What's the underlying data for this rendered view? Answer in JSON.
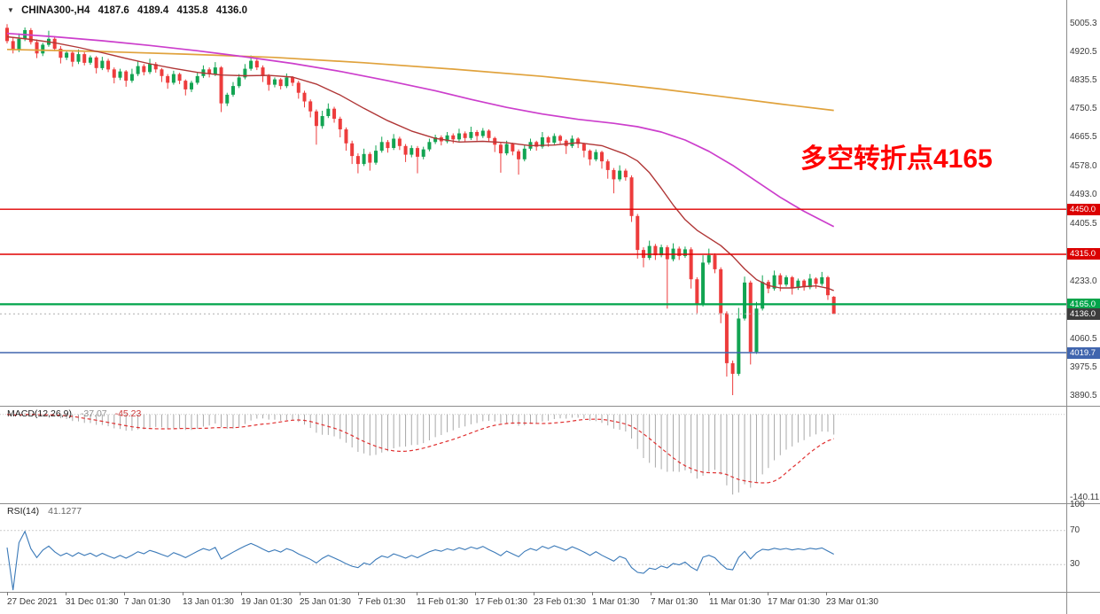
{
  "window": {
    "symbol": "CHINA300-,H4",
    "open": "4187.6",
    "high": "4189.4",
    "low": "4135.8",
    "close": "4136.0"
  },
  "annotation": {
    "text": "多空转折点4165",
    "color": "#FF0000"
  },
  "indicators": {
    "macd": {
      "name": "MACD(12,26,9)",
      "value_main": "-37.07",
      "value_signal": "-45.23",
      "axis_min": "-140.11"
    },
    "rsi": {
      "name": "RSI(14)",
      "value": "41.1277",
      "levels": [
        100,
        70,
        30
      ]
    }
  },
  "price_axis": {
    "ticks": [
      5005.3,
      4920.5,
      4835.5,
      4750.5,
      4665.5,
      4578.0,
      4493.0,
      4405.5,
      4320.5,
      4233.0,
      4148.0,
      4060.5,
      3975.5,
      3890.5
    ],
    "badges": [
      {
        "text": "4450.0",
        "price": 4450.0,
        "bg": "#DB0000"
      },
      {
        "text": "4315.0",
        "price": 4315.0,
        "bg": "#DB0000"
      },
      {
        "text": "4165.0",
        "price": 4165.0,
        "bg": "#00A44A"
      },
      {
        "text": "4136.0",
        "price": 4136.0,
        "bg": "#3C3C3C"
      },
      {
        "text": "4019.7",
        "price": 4019.7,
        "bg": "#4065AE"
      }
    ]
  },
  "time_axis": {
    "labels": [
      "27 Dec 2021",
      "31 Dec 01:30",
      "7 Jan 01:30",
      "13 Jan 01:30",
      "19 Jan 01:30",
      "25 Jan 01:30",
      "7 Feb 01:30",
      "11 Feb 01:30",
      "17 Feb 01:30",
      "23 Feb 01:30",
      "1 Mar 01:30",
      "7 Mar 01:30",
      "11 Mar 01:30",
      "17 Mar 01:30",
      "23 Mar 01:30"
    ]
  },
  "chart_data": {
    "type": "candlestick",
    "symbol": "CHINA300-",
    "timeframe": "H4",
    "visible_price_range": [
      3860,
      5078
    ],
    "colors": {
      "bull": "#12A452",
      "bear": "#ED3C3C",
      "ma_slow": "#E0A23C",
      "ma_mid": "#CC3ECC",
      "ma_fast": "#B03636",
      "macd_hist": "#A8A8A8",
      "macd_signal": "#E03131",
      "rsi": "#3A79B8"
    },
    "hlines": [
      {
        "price": 4450.0,
        "color": "#E00000",
        "width": 1.4
      },
      {
        "price": 4315.0,
        "color": "#E00000",
        "width": 1.4
      },
      {
        "price": 4165.0,
        "color": "#00A44A",
        "width": 2.2
      },
      {
        "price": 4019.7,
        "color": "#4065AE",
        "width": 1.6
      },
      {
        "price": 4136.0,
        "color": "#AFAFAF",
        "width": 1,
        "style": "dotted"
      }
    ],
    "macd": {
      "fast": 12,
      "slow": 26,
      "signal": 9
    },
    "rsi_period": 14,
    "candles": [
      [
        4995,
        5006,
        4948,
        4955
      ],
      [
        4955,
        4968,
        4918,
        4928
      ],
      [
        4928,
        4978,
        4922,
        4962
      ],
      [
        4962,
        4996,
        4955,
        4988
      ],
      [
        4988,
        4994,
        4945,
        4952
      ],
      [
        4952,
        4960,
        4904,
        4918
      ],
      [
        4918,
        4950,
        4910,
        4944
      ],
      [
        4944,
        4986,
        4938,
        4962
      ],
      [
        4962,
        4970,
        4925,
        4932
      ],
      [
        4932,
        4940,
        4888,
        4905
      ],
      [
        4905,
        4928,
        4898,
        4920
      ],
      [
        4920,
        4926,
        4878,
        4893
      ],
      [
        4893,
        4930,
        4886,
        4916
      ],
      [
        4916,
        4922,
        4882,
        4890
      ],
      [
        4890,
        4912,
        4884,
        4906
      ],
      [
        4906,
        4910,
        4858,
        4874
      ],
      [
        4874,
        4908,
        4868,
        4896
      ],
      [
        4896,
        4902,
        4862,
        4870
      ],
      [
        4870,
        4876,
        4828,
        4845
      ],
      [
        4845,
        4872,
        4838,
        4864
      ],
      [
        4864,
        4868,
        4818,
        4836
      ],
      [
        4836,
        4872,
        4830,
        4856
      ],
      [
        4856,
        4896,
        4850,
        4880
      ],
      [
        4880,
        4886,
        4852,
        4862
      ],
      [
        4862,
        4902,
        4856,
        4886
      ],
      [
        4886,
        4892,
        4860,
        4870
      ],
      [
        4870,
        4874,
        4832,
        4850
      ],
      [
        4850,
        4856,
        4812,
        4830
      ],
      [
        4830,
        4866,
        4824,
        4856
      ],
      [
        4856,
        4860,
        4826,
        4836
      ],
      [
        4836,
        4840,
        4792,
        4810
      ],
      [
        4810,
        4836,
        4802,
        4830
      ],
      [
        4830,
        4862,
        4824,
        4850
      ],
      [
        4850,
        4882,
        4844,
        4870
      ],
      [
        4870,
        4876,
        4846,
        4856
      ],
      [
        4856,
        4892,
        4850,
        4876
      ],
      [
        4876,
        4880,
        4742,
        4768
      ],
      [
        4768,
        4800,
        4760,
        4794
      ],
      [
        4794,
        4832,
        4788,
        4820
      ],
      [
        4820,
        4856,
        4814,
        4846
      ],
      [
        4846,
        4886,
        4840,
        4872
      ],
      [
        4872,
        4912,
        4866,
        4896
      ],
      [
        4896,
        4902,
        4868,
        4876
      ],
      [
        4876,
        4882,
        4832,
        4850
      ],
      [
        4850,
        4856,
        4806,
        4824
      ],
      [
        4824,
        4846,
        4816,
        4840
      ],
      [
        4840,
        4844,
        4810,
        4820
      ],
      [
        4820,
        4858,
        4814,
        4846
      ],
      [
        4846,
        4850,
        4820,
        4830
      ],
      [
        4830,
        4836,
        4782,
        4800
      ],
      [
        4800,
        4806,
        4756,
        4774
      ],
      [
        4774,
        4780,
        4726,
        4744
      ],
      [
        4744,
        4750,
        4644,
        4700
      ],
      [
        4700,
        4746,
        4692,
        4730
      ],
      [
        4730,
        4768,
        4724,
        4752
      ],
      [
        4752,
        4758,
        4710,
        4722
      ],
      [
        4722,
        4728,
        4666,
        4690
      ],
      [
        4690,
        4696,
        4626,
        4648
      ],
      [
        4648,
        4656,
        4586,
        4610
      ],
      [
        4610,
        4618,
        4558,
        4586
      ],
      [
        4586,
        4632,
        4580,
        4616
      ],
      [
        4616,
        4622,
        4566,
        4590
      ],
      [
        4590,
        4642,
        4584,
        4626
      ],
      [
        4626,
        4668,
        4620,
        4652
      ],
      [
        4652,
        4658,
        4620,
        4634
      ],
      [
        4634,
        4676,
        4628,
        4662
      ],
      [
        4662,
        4668,
        4628,
        4640
      ],
      [
        4640,
        4646,
        4592,
        4614
      ],
      [
        4614,
        4642,
        4606,
        4634
      ],
      [
        4634,
        4640,
        4558,
        4608
      ],
      [
        4608,
        4638,
        4600,
        4630
      ],
      [
        4630,
        4662,
        4624,
        4652
      ],
      [
        4652,
        4674,
        4646,
        4666
      ],
      [
        4666,
        4672,
        4642,
        4654
      ],
      [
        4654,
        4682,
        4648,
        4672
      ],
      [
        4672,
        4678,
        4648,
        4660
      ],
      [
        4660,
        4692,
        4654,
        4678
      ],
      [
        4678,
        4684,
        4652,
        4664
      ],
      [
        4664,
        4698,
        4658,
        4682
      ],
      [
        4682,
        4688,
        4656,
        4670
      ],
      [
        4670,
        4694,
        4664,
        4686
      ],
      [
        4686,
        4690,
        4652,
        4664
      ],
      [
        4664,
        4668,
        4622,
        4644
      ],
      [
        4644,
        4650,
        4560,
        4618
      ],
      [
        4618,
        4656,
        4612,
        4646
      ],
      [
        4646,
        4650,
        4612,
        4624
      ],
      [
        4624,
        4630,
        4554,
        4600
      ],
      [
        4600,
        4642,
        4594,
        4632
      ],
      [
        4632,
        4662,
        4626,
        4652
      ],
      [
        4652,
        4656,
        4626,
        4638
      ],
      [
        4638,
        4682,
        4632,
        4666
      ],
      [
        4666,
        4670,
        4638,
        4650
      ],
      [
        4650,
        4678,
        4644,
        4670
      ],
      [
        4670,
        4674,
        4644,
        4656
      ],
      [
        4656,
        4660,
        4616,
        4640
      ],
      [
        4640,
        4672,
        4634,
        4662
      ],
      [
        4662,
        4666,
        4634,
        4646
      ],
      [
        4646,
        4650,
        4606,
        4626
      ],
      [
        4626,
        4630,
        4582,
        4600
      ],
      [
        4600,
        4630,
        4594,
        4622
      ],
      [
        4622,
        4626,
        4572,
        4594
      ],
      [
        4594,
        4600,
        4542,
        4568
      ],
      [
        4568,
        4574,
        4498,
        4540
      ],
      [
        4540,
        4582,
        4534,
        4566
      ],
      [
        4566,
        4572,
        4536,
        4546
      ],
      [
        4546,
        4552,
        4412,
        4430
      ],
      [
        4430,
        4436,
        4302,
        4328
      ],
      [
        4328,
        4336,
        4276,
        4304
      ],
      [
        4304,
        4356,
        4298,
        4340
      ],
      [
        4340,
        4346,
        4298,
        4312
      ],
      [
        4312,
        4344,
        4306,
        4336
      ],
      [
        4336,
        4342,
        4152,
        4300
      ],
      [
        4300,
        4348,
        4294,
        4332
      ],
      [
        4332,
        4338,
        4298,
        4310
      ],
      [
        4310,
        4338,
        4304,
        4330
      ],
      [
        4330,
        4336,
        4212,
        4240
      ],
      [
        4240,
        4246,
        4138,
        4164
      ],
      [
        4164,
        4312,
        4158,
        4290
      ],
      [
        4290,
        4332,
        4284,
        4312
      ],
      [
        4312,
        4318,
        4258,
        4270
      ],
      [
        4270,
        4276,
        4108,
        4138
      ],
      [
        4138,
        4144,
        3948,
        3988
      ],
      [
        3988,
        3996,
        3892,
        3956
      ],
      [
        3956,
        4154,
        3950,
        4122
      ],
      [
        4122,
        4248,
        4116,
        4230
      ],
      [
        4230,
        4236,
        3984,
        4022
      ],
      [
        4022,
        4172,
        4016,
        4152
      ],
      [
        4152,
        4252,
        4146,
        4232
      ],
      [
        4232,
        4238,
        4198,
        4212
      ],
      [
        4212,
        4266,
        4206,
        4252
      ],
      [
        4252,
        4258,
        4204,
        4224
      ],
      [
        4224,
        4252,
        4218,
        4246
      ],
      [
        4246,
        4250,
        4194,
        4214
      ],
      [
        4214,
        4242,
        4208,
        4236
      ],
      [
        4236,
        4240,
        4206,
        4216
      ],
      [
        4216,
        4256,
        4210,
        4242
      ],
      [
        4242,
        4246,
        4212,
        4226
      ],
      [
        4226,
        4262,
        4220,
        4246
      ],
      [
        4246,
        4250,
        4178,
        4192
      ],
      [
        4187.6,
        4189.4,
        4135.8,
        4136.0
      ]
    ],
    "ma_slow_orange": [
      [
        0,
        4930
      ],
      [
        15,
        4924
      ],
      [
        30,
        4916
      ],
      [
        45,
        4906
      ],
      [
        60,
        4890
      ],
      [
        75,
        4871
      ],
      [
        90,
        4849
      ],
      [
        100,
        4831
      ],
      [
        110,
        4811
      ],
      [
        120,
        4789
      ],
      [
        130,
        4766
      ],
      [
        139,
        4747
      ]
    ],
    "ma_mid_magenta": [
      [
        0,
        4978
      ],
      [
        8,
        4968
      ],
      [
        16,
        4956
      ],
      [
        24,
        4942
      ],
      [
        32,
        4926
      ],
      [
        40,
        4908
      ],
      [
        48,
        4888
      ],
      [
        56,
        4864
      ],
      [
        64,
        4836
      ],
      [
        72,
        4806
      ],
      [
        78,
        4780
      ],
      [
        84,
        4756
      ],
      [
        90,
        4736
      ],
      [
        96,
        4720
      ],
      [
        102,
        4708
      ],
      [
        106,
        4698
      ],
      [
        110,
        4682
      ],
      [
        114,
        4658
      ],
      [
        118,
        4624
      ],
      [
        122,
        4582
      ],
      [
        126,
        4534
      ],
      [
        130,
        4486
      ],
      [
        134,
        4444
      ],
      [
        139,
        4398
      ]
    ],
    "ma_fast_darkred": [
      [
        0,
        4968
      ],
      [
        4,
        4960
      ],
      [
        8,
        4950
      ],
      [
        12,
        4936
      ],
      [
        16,
        4920
      ],
      [
        20,
        4903
      ],
      [
        24,
        4887
      ],
      [
        28,
        4873
      ],
      [
        32,
        4861
      ],
      [
        36,
        4853
      ],
      [
        40,
        4851
      ],
      [
        44,
        4852
      ],
      [
        48,
        4847
      ],
      [
        52,
        4826
      ],
      [
        56,
        4793
      ],
      [
        60,
        4753
      ],
      [
        64,
        4716
      ],
      [
        68,
        4685
      ],
      [
        72,
        4663
      ],
      [
        76,
        4652
      ],
      [
        80,
        4654
      ],
      [
        84,
        4650
      ],
      [
        88,
        4641
      ],
      [
        92,
        4643
      ],
      [
        96,
        4650
      ],
      [
        100,
        4641
      ],
      [
        104,
        4615
      ],
      [
        106,
        4595
      ],
      [
        108,
        4560
      ],
      [
        110,
        4513
      ],
      [
        112,
        4463
      ],
      [
        114,
        4419
      ],
      [
        116,
        4387
      ],
      [
        118,
        4364
      ],
      [
        120,
        4341
      ],
      [
        122,
        4309
      ],
      [
        124,
        4271
      ],
      [
        126,
        4239
      ],
      [
        128,
        4221
      ],
      [
        130,
        4214
      ],
      [
        132,
        4214
      ],
      [
        134,
        4218
      ],
      [
        136,
        4220
      ],
      [
        138,
        4213
      ],
      [
        139,
        4206
      ]
    ]
  }
}
